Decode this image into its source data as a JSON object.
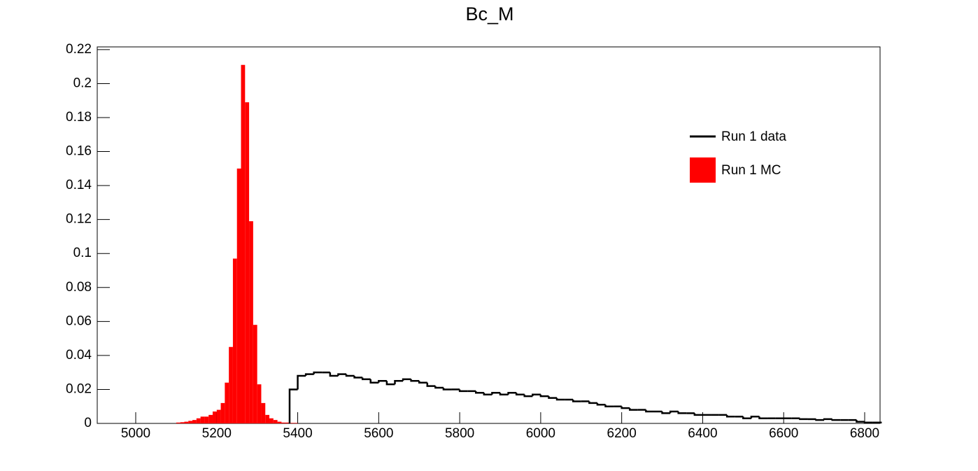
{
  "chart_data": {
    "type": "histogram",
    "title": "Bc_M",
    "xlim": [
      4905,
      6838
    ],
    "ylim": [
      0,
      0.2216
    ],
    "xticks": [
      5000,
      5200,
      5400,
      5600,
      5800,
      6000,
      6200,
      6400,
      6600,
      6800
    ],
    "yticks": [
      0,
      0.02,
      0.04,
      0.06,
      0.08,
      0.1,
      0.12,
      0.14,
      0.16,
      0.18,
      0.2,
      0.22
    ],
    "legend": "upper right",
    "series": [
      {
        "name": "Run 1 data",
        "color": "#000000",
        "style": "step",
        "bins": [
          5380,
          5400,
          5420,
          5440,
          5460,
          5480,
          5500,
          5520,
          5540,
          5560,
          5580,
          5600,
          5620,
          5640,
          5660,
          5680,
          5700,
          5720,
          5740,
          5760,
          5780,
          5800,
          5820,
          5840,
          5860,
          5880,
          5900,
          5920,
          5940,
          5960,
          5980,
          6000,
          6020,
          6040,
          6060,
          6080,
          6100,
          6120,
          6140,
          6160,
          6180,
          6200,
          6220,
          6240,
          6260,
          6280,
          6300,
          6320,
          6340,
          6360,
          6380,
          6400,
          6420,
          6440,
          6460,
          6480,
          6500,
          6520,
          6540,
          6560,
          6580,
          6600,
          6620,
          6640,
          6660,
          6680,
          6700,
          6720,
          6740,
          6760,
          6780,
          6800,
          6820,
          6840
        ],
        "values": [
          0.02,
          0.028,
          0.029,
          0.03,
          0.03,
          0.028,
          0.029,
          0.028,
          0.027,
          0.026,
          0.024,
          0.025,
          0.023,
          0.025,
          0.026,
          0.025,
          0.024,
          0.022,
          0.021,
          0.02,
          0.02,
          0.019,
          0.019,
          0.018,
          0.017,
          0.018,
          0.017,
          0.018,
          0.017,
          0.016,
          0.017,
          0.016,
          0.015,
          0.014,
          0.014,
          0.013,
          0.013,
          0.012,
          0.011,
          0.01,
          0.01,
          0.009,
          0.008,
          0.008,
          0.007,
          0.007,
          0.006,
          0.007,
          0.006,
          0.006,
          0.005,
          0.005,
          0.005,
          0.005,
          0.004,
          0.004,
          0.003,
          0.004,
          0.003,
          0.003,
          0.003,
          0.003,
          0.003,
          0.0025,
          0.0025,
          0.002,
          0.0025,
          0.002,
          0.002,
          0.002,
          0.001,
          0.0005,
          0.0005
        ]
      },
      {
        "name": "Run 1 MC",
        "color": "#ff0000",
        "style": "fill",
        "bins": [
          5100,
          5110,
          5120,
          5130,
          5140,
          5150,
          5160,
          5170,
          5180,
          5190,
          5200,
          5210,
          5220,
          5230,
          5240,
          5250,
          5260,
          5270,
          5280,
          5290,
          5300,
          5310,
          5320,
          5330,
          5340,
          5350,
          5360,
          5370,
          5380,
          5390,
          5400
        ],
        "values": [
          0.0005,
          0.0007,
          0.001,
          0.0015,
          0.002,
          0.003,
          0.004,
          0.004,
          0.005,
          0.007,
          0.008,
          0.012,
          0.024,
          0.045,
          0.097,
          0.15,
          0.211,
          0.189,
          0.119,
          0.058,
          0.023,
          0.012,
          0.005,
          0.003,
          0.002,
          0.001,
          0.0005,
          0.0005,
          0.0003,
          0.0003
        ]
      }
    ]
  }
}
